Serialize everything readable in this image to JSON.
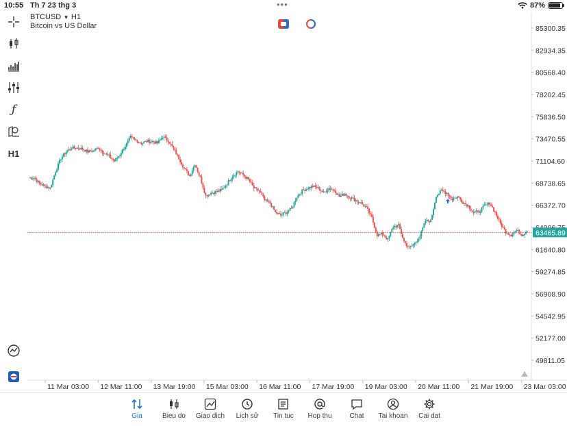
{
  "status_bar": {
    "time": "10:55",
    "date": "Th 7 23 thg 3",
    "battery": "87%",
    "battery_level": 0.87
  },
  "symbol": {
    "name": "BTCUSD",
    "arrow": "▾",
    "timeframe": "H1",
    "description": "Bitcoin vs US Dollar"
  },
  "toolbar": {
    "timeframe_label": "H1"
  },
  "chart": {
    "price_labels": [
      "85300.35",
      "82934.35",
      "80568.40",
      "78202.45",
      "75836.50",
      "73470.55",
      "71104.60",
      "68738.65",
      "66372.70",
      "64006.75",
      "61640.80",
      "59274.85",
      "56908.90",
      "54542.95",
      "52177.00",
      "49811.05"
    ],
    "price_label_values": [
      85300.35,
      82934.35,
      80568.4,
      78202.45,
      75836.5,
      73470.55,
      71104.6,
      68738.65,
      66372.7,
      64006.75,
      61640.8,
      59274.85,
      56908.9,
      54542.95,
      52177.0,
      49811.05
    ],
    "time_labels": [
      "11 Mar 03:00",
      "12 Mar 11:00",
      "13 Mar 19:00",
      "15 Mar 03:00",
      "16 Mar 11:00",
      "17 Mar 19:00",
      "19 Mar 03:00",
      "20 Mar 11:00",
      "21 Mar 19:00",
      "23 Mar 03:00"
    ],
    "current_price": "63465.89",
    "current_price_value": 63465.89,
    "colors": {
      "up": "#26a69a",
      "down": "#ef5350",
      "price_line": "#e05a4f",
      "price_tag": "#26a69a"
    },
    "path_points": [
      69300,
      69300,
      68700,
      68400,
      68200,
      70000,
      71400,
      72100,
      72500,
      72500,
      72400,
      72100,
      72200,
      72500,
      72000,
      71600,
      71100,
      71800,
      72700,
      73600,
      73300,
      73000,
      73200,
      73200,
      73000,
      73700,
      73300,
      72400,
      71400,
      70300,
      69500,
      70800,
      69300,
      67400,
      67700,
      67800,
      68000,
      68700,
      69500,
      70000,
      69600,
      69100,
      68200,
      67900,
      66900,
      66600,
      65600,
      65300,
      65600,
      66000,
      67300,
      67900,
      68200,
      68400,
      68200,
      67700,
      68200,
      68000,
      67300,
      67600,
      67200,
      66900,
      66600,
      66100,
      65000,
      63200,
      63300,
      62700,
      64100,
      64200,
      62500,
      61800,
      62300,
      63100,
      64700,
      64700,
      67400,
      67900,
      67700,
      67000,
      67300,
      66700,
      66300,
      65600,
      65700,
      66300,
      66600,
      65600,
      64400,
      63500,
      63200,
      63700,
      63200,
      63700
    ]
  },
  "tabs": [
    {
      "label": "Gia",
      "icon": "price-arrows-icon"
    },
    {
      "label": "Bieu do",
      "icon": "candles-icon"
    },
    {
      "label": "Giao dich",
      "icon": "trade-chart-icon"
    },
    {
      "label": "Lich sử",
      "icon": "history-clock-icon"
    },
    {
      "label": "Tin tuc",
      "icon": "news-icon"
    },
    {
      "label": "Hop thu",
      "icon": "at-sign-icon"
    },
    {
      "label": "Chat",
      "icon": "chat-bubble-icon"
    },
    {
      "label": "Tai khoan",
      "icon": "account-icon"
    },
    {
      "label": "Cai dat",
      "icon": "gear-icon"
    }
  ]
}
